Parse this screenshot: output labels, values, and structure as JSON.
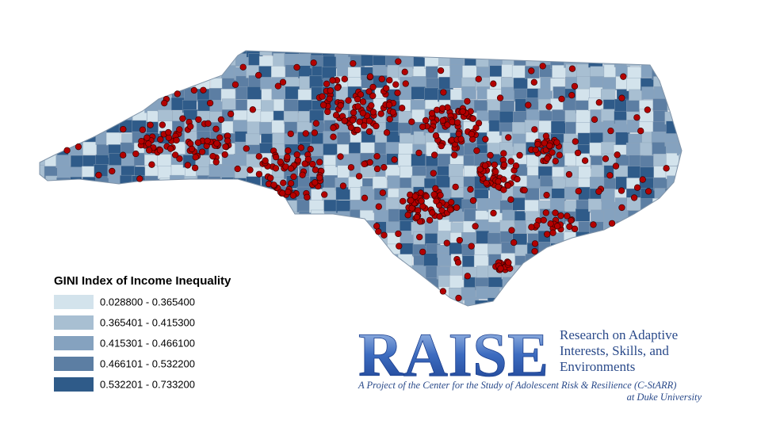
{
  "legend": {
    "title": "GINI Index of Income Inequality",
    "items": [
      {
        "label": "0.028800 - 0.365400",
        "color": "#d3e3ec"
      },
      {
        "label": "0.365401 - 0.415300",
        "color": "#a8bfd2"
      },
      {
        "label": "0.415301 - 0.466100",
        "color": "#85a2bf"
      },
      {
        "label": "0.466101 - 0.532200",
        "color": "#5c7ea3"
      },
      {
        "label": "0.532201 - 0.733200",
        "color": "#2f5b89"
      }
    ]
  },
  "logo": {
    "wordmark": "RAISE",
    "tagline": [
      "Research on Adaptive",
      "Interests, Skills, and",
      "Environments"
    ],
    "project": "A Project of the Center for the Study of Adolescent Risk & Resilience (C-StARR)",
    "affiliation": "at Duke University"
  }
}
